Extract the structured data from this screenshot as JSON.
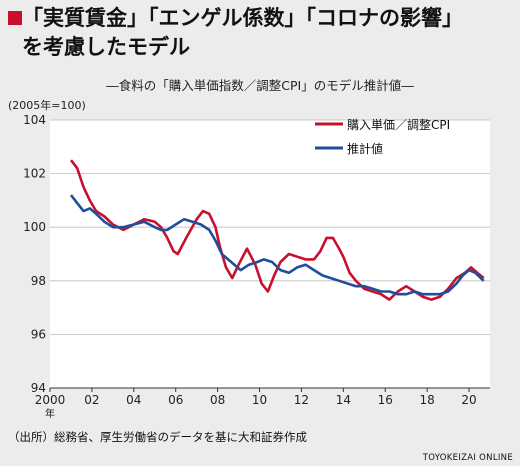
{
  "header": {
    "title_line1": "「実質賃金」「エンゲル係数」「コロナの影響」",
    "title_line2": "を考慮したモデル",
    "subtitle": "―食料の「購入単価指数／調整CPI」のモデル推計値―",
    "unit": "(2005年=100)"
  },
  "footer": {
    "source": "（出所）総務省、厚生労働省のデータを基に大和証券作成",
    "credit": "TOYOKEIZAI ONLINE"
  },
  "colors": {
    "accent": "#c8102e",
    "red_series": "#c8102e",
    "blue_series": "#1f4e9c",
    "grid": "#bdbdbd"
  },
  "chart_data": {
    "type": "line",
    "xlim": [
      2000,
      2021
    ],
    "ylim": [
      94,
      104
    ],
    "x_ticks": [
      2000,
      2002,
      2004,
      2006,
      2008,
      2010,
      2012,
      2014,
      2016,
      2018,
      2020
    ],
    "x_tick_labels": [
      "2000",
      "02",
      "04",
      "06",
      "08",
      "10",
      "12",
      "14",
      "16",
      "18",
      "20"
    ],
    "x_first_tick_suffix": "年",
    "y_ticks": [
      94,
      96,
      98,
      100,
      102,
      104
    ],
    "grid": "horizontal",
    "legend_position": "top-right",
    "series": [
      {
        "name": "購入単価／調整CPI",
        "color": "#c8102e",
        "points": [
          [
            2001.0,
            102.5
          ],
          [
            2001.3,
            102.2
          ],
          [
            2001.6,
            101.5
          ],
          [
            2001.9,
            101.0
          ],
          [
            2002.2,
            100.6
          ],
          [
            2002.6,
            100.4
          ],
          [
            2003.0,
            100.1
          ],
          [
            2003.5,
            99.9
          ],
          [
            2004.0,
            100.1
          ],
          [
            2004.5,
            100.3
          ],
          [
            2005.0,
            100.2
          ],
          [
            2005.3,
            100.0
          ],
          [
            2005.6,
            99.6
          ],
          [
            2005.9,
            99.1
          ],
          [
            2006.1,
            99.0
          ],
          [
            2006.5,
            99.6
          ],
          [
            2007.0,
            100.3
          ],
          [
            2007.3,
            100.6
          ],
          [
            2007.6,
            100.5
          ],
          [
            2007.9,
            100.0
          ],
          [
            2008.1,
            99.3
          ],
          [
            2008.4,
            98.5
          ],
          [
            2008.7,
            98.1
          ],
          [
            2009.0,
            98.6
          ],
          [
            2009.4,
            99.2
          ],
          [
            2009.8,
            98.6
          ],
          [
            2010.1,
            97.9
          ],
          [
            2010.4,
            97.6
          ],
          [
            2010.7,
            98.2
          ],
          [
            2011.0,
            98.7
          ],
          [
            2011.4,
            99.0
          ],
          [
            2011.8,
            98.9
          ],
          [
            2012.2,
            98.8
          ],
          [
            2012.6,
            98.8
          ],
          [
            2012.9,
            99.1
          ],
          [
            2013.2,
            99.6
          ],
          [
            2013.5,
            99.6
          ],
          [
            2013.8,
            99.2
          ],
          [
            2014.0,
            98.9
          ],
          [
            2014.3,
            98.3
          ],
          [
            2014.6,
            98.0
          ],
          [
            2015.0,
            97.7
          ],
          [
            2015.4,
            97.6
          ],
          [
            2015.8,
            97.5
          ],
          [
            2016.2,
            97.3
          ],
          [
            2016.6,
            97.6
          ],
          [
            2017.0,
            97.8
          ],
          [
            2017.4,
            97.6
          ],
          [
            2017.8,
            97.4
          ],
          [
            2018.2,
            97.3
          ],
          [
            2018.6,
            97.4
          ],
          [
            2019.0,
            97.7
          ],
          [
            2019.4,
            98.1
          ],
          [
            2019.8,
            98.3
          ],
          [
            2020.1,
            98.5
          ],
          [
            2020.4,
            98.3
          ],
          [
            2020.7,
            98.1
          ]
        ]
      },
      {
        "name": "推計値",
        "color": "#1f4e9c",
        "points": [
          [
            2001.0,
            101.2
          ],
          [
            2001.3,
            100.9
          ],
          [
            2001.6,
            100.6
          ],
          [
            2001.9,
            100.7
          ],
          [
            2002.2,
            100.5
          ],
          [
            2002.6,
            100.2
          ],
          [
            2003.0,
            100.0
          ],
          [
            2003.5,
            100.0
          ],
          [
            2004.0,
            100.1
          ],
          [
            2004.5,
            100.2
          ],
          [
            2005.0,
            100.0
          ],
          [
            2005.3,
            99.9
          ],
          [
            2005.6,
            99.9
          ],
          [
            2006.0,
            100.1
          ],
          [
            2006.4,
            100.3
          ],
          [
            2006.8,
            100.2
          ],
          [
            2007.2,
            100.1
          ],
          [
            2007.6,
            99.9
          ],
          [
            2007.9,
            99.5
          ],
          [
            2008.2,
            99.0
          ],
          [
            2008.5,
            98.8
          ],
          [
            2008.8,
            98.6
          ],
          [
            2009.1,
            98.4
          ],
          [
            2009.5,
            98.6
          ],
          [
            2009.9,
            98.7
          ],
          [
            2010.2,
            98.8
          ],
          [
            2010.6,
            98.7
          ],
          [
            2011.0,
            98.4
          ],
          [
            2011.4,
            98.3
          ],
          [
            2011.8,
            98.5
          ],
          [
            2012.2,
            98.6
          ],
          [
            2012.6,
            98.4
          ],
          [
            2013.0,
            98.2
          ],
          [
            2013.4,
            98.1
          ],
          [
            2013.8,
            98.0
          ],
          [
            2014.2,
            97.9
          ],
          [
            2014.6,
            97.8
          ],
          [
            2015.0,
            97.8
          ],
          [
            2015.4,
            97.7
          ],
          [
            2015.8,
            97.6
          ],
          [
            2016.2,
            97.6
          ],
          [
            2016.6,
            97.5
          ],
          [
            2017.0,
            97.5
          ],
          [
            2017.4,
            97.6
          ],
          [
            2017.8,
            97.5
          ],
          [
            2018.2,
            97.5
          ],
          [
            2018.6,
            97.5
          ],
          [
            2019.0,
            97.6
          ],
          [
            2019.4,
            97.9
          ],
          [
            2019.7,
            98.2
          ],
          [
            2020.0,
            98.4
          ],
          [
            2020.3,
            98.3
          ],
          [
            2020.7,
            98.0
          ]
        ]
      }
    ]
  }
}
